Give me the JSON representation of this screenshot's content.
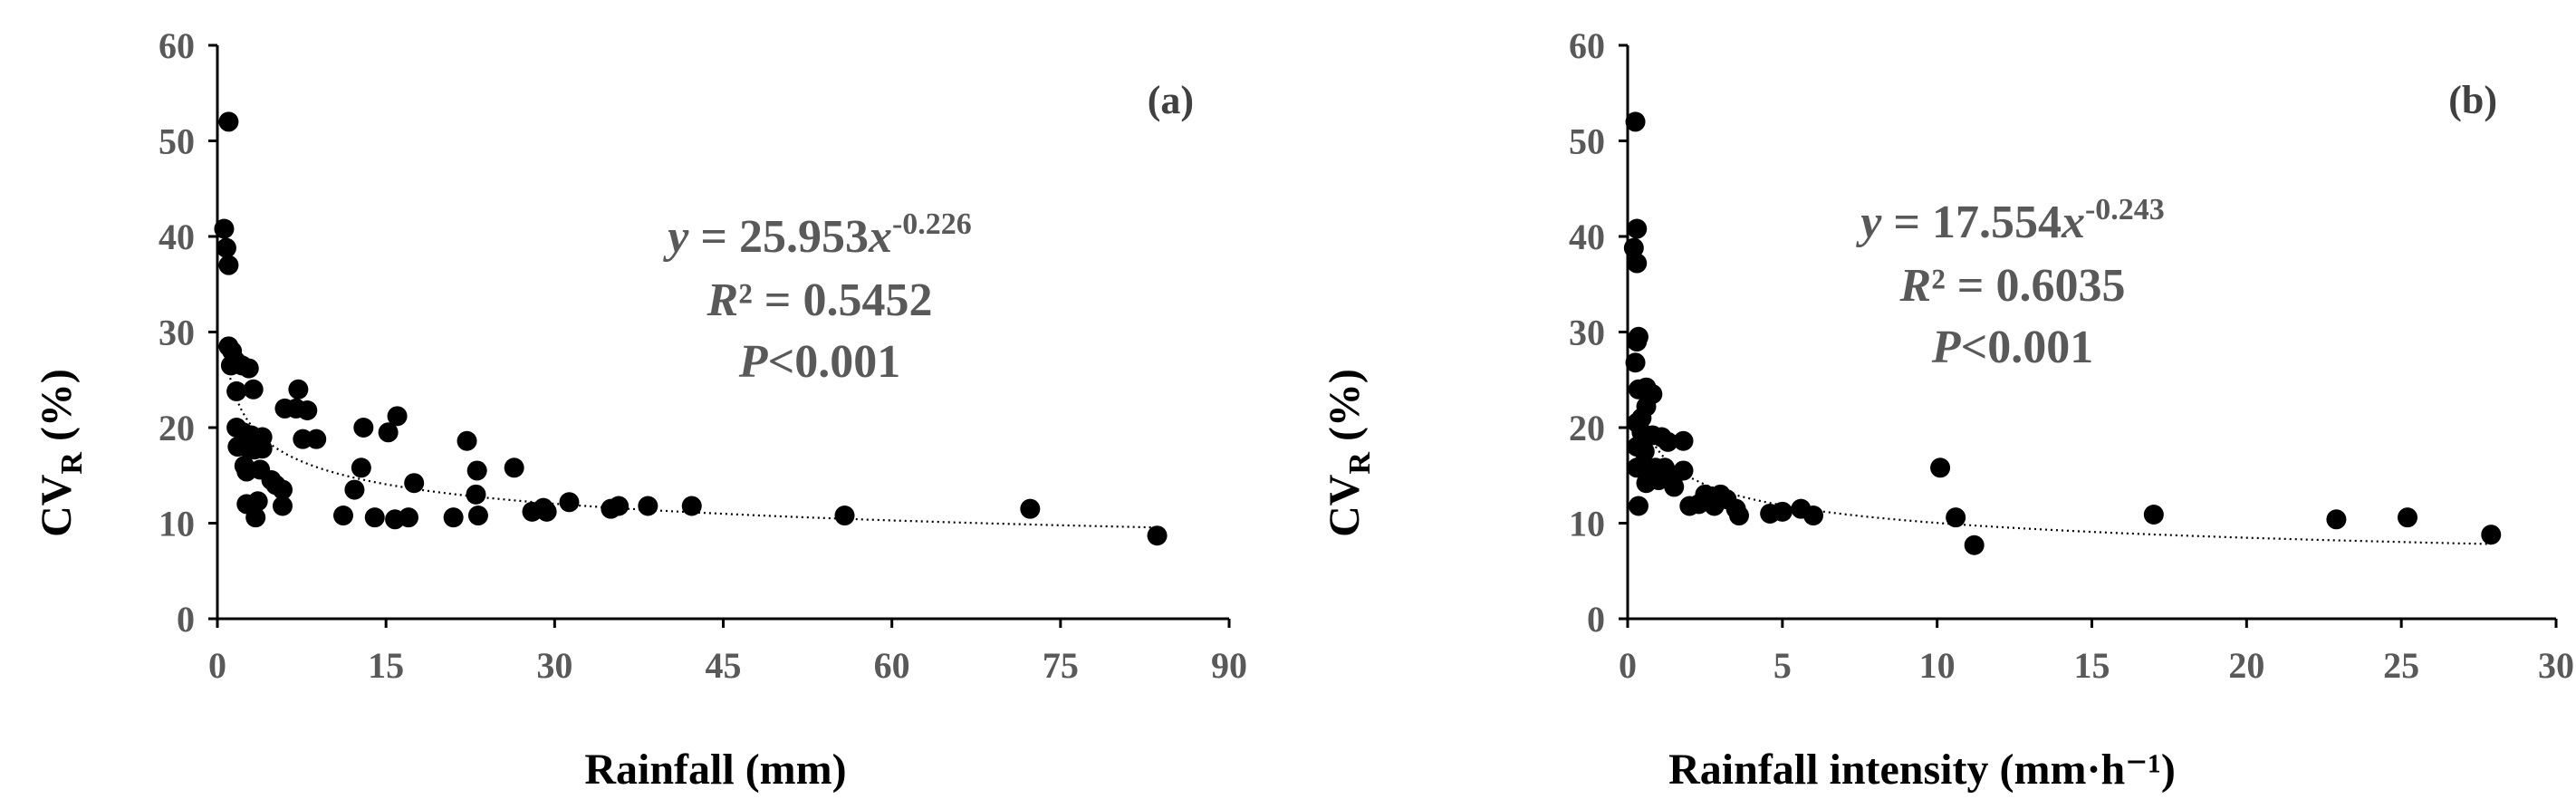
{
  "chart_data": [
    {
      "type": "scatter",
      "panel_label": "(a)",
      "xlabel": "Rainfall (mm)",
      "ylabel": {
        "main": "CV",
        "sub": "R",
        "rest": " (%)"
      },
      "xlim": [
        0,
        90
      ],
      "ylim": [
        0,
        60
      ],
      "xticks": [
        "0",
        "15",
        "30",
        "45",
        "60",
        "75",
        "90"
      ],
      "yticks": [
        "0",
        "10",
        "20",
        "30",
        "40",
        "50",
        "60"
      ],
      "equation": {
        "y": "y",
        "eq_mid": " = 25.953",
        "x": "x",
        "exp": "-0.226"
      },
      "r2": {
        "r": "R",
        "rest": "² = 0.5452"
      },
      "p": {
        "p": "P",
        "rest": "<0.001"
      },
      "trendline": {
        "type": "power",
        "a": 25.953,
        "b": -0.226,
        "style": "dotted"
      },
      "points": [
        [
          1.0,
          52.0
        ],
        [
          0.6,
          40.8
        ],
        [
          0.8,
          38.8
        ],
        [
          1.0,
          37.0
        ],
        [
          1.0,
          28.5
        ],
        [
          1.3,
          28.0
        ],
        [
          1.6,
          27.0
        ],
        [
          1.2,
          26.5
        ],
        [
          2.0,
          26.6
        ],
        [
          2.2,
          26.5
        ],
        [
          2.8,
          26.2
        ],
        [
          3.2,
          24.0
        ],
        [
          1.7,
          23.8
        ],
        [
          1.7,
          20.0
        ],
        [
          2.3,
          19.5
        ],
        [
          3.0,
          19.2
        ],
        [
          4.0,
          19.0
        ],
        [
          1.8,
          18.0
        ],
        [
          2.5,
          18.0
        ],
        [
          3.3,
          17.7
        ],
        [
          4.0,
          17.8
        ],
        [
          2.4,
          16.0
        ],
        [
          2.6,
          15.4
        ],
        [
          3.8,
          15.6
        ],
        [
          4.8,
          14.5
        ],
        [
          5.2,
          14.0
        ],
        [
          5.8,
          13.5
        ],
        [
          2.6,
          12.0
        ],
        [
          3.6,
          12.3
        ],
        [
          5.8,
          11.8
        ],
        [
          3.4,
          10.6
        ],
        [
          6.0,
          22.0
        ],
        [
          7.0,
          22.0
        ],
        [
          8.0,
          21.8
        ],
        [
          7.2,
          24.0
        ],
        [
          7.6,
          18.8
        ],
        [
          8.8,
          18.8
        ],
        [
          16.0,
          21.2
        ],
        [
          13.0,
          20.0
        ],
        [
          15.2,
          19.5
        ],
        [
          12.2,
          13.5
        ],
        [
          12.8,
          15.8
        ],
        [
          17.5,
          14.2
        ],
        [
          11.2,
          10.8
        ],
        [
          14.0,
          10.6
        ],
        [
          15.8,
          10.4
        ],
        [
          17.0,
          10.6
        ],
        [
          21.0,
          10.6
        ],
        [
          22.2,
          18.6
        ],
        [
          23.1,
          15.5
        ],
        [
          23.0,
          13.0
        ],
        [
          23.2,
          10.8
        ],
        [
          26.4,
          15.8
        ],
        [
          28.0,
          11.2
        ],
        [
          29.0,
          11.6
        ],
        [
          29.3,
          11.2
        ],
        [
          31.3,
          12.2
        ],
        [
          35.0,
          11.5
        ],
        [
          35.7,
          11.8
        ],
        [
          38.3,
          11.8
        ],
        [
          42.2,
          11.8
        ],
        [
          55.8,
          10.8
        ],
        [
          72.3,
          11.5
        ],
        [
          83.6,
          8.7
        ]
      ]
    },
    {
      "type": "scatter",
      "panel_label": "(b)",
      "xlabel": "Rainfall intensity  (mm·h⁻¹)",
      "ylabel": {
        "main": "CV",
        "sub": "R",
        "rest": " (%)"
      },
      "xlim": [
        0,
        30
      ],
      "ylim": [
        0,
        60
      ],
      "xticks": [
        "0",
        "5",
        "10",
        "15",
        "20",
        "25",
        "30"
      ],
      "yticks": [
        "0",
        "10",
        "20",
        "30",
        "40",
        "50",
        "60"
      ],
      "equation": {
        "y": "y",
        "eq_mid": " = 17.554",
        "x": "x",
        "exp": "-0.243"
      },
      "r2": {
        "r": "R",
        "rest": "² = 0.6035"
      },
      "p": {
        "p": "P",
        "rest": "<0.001"
      },
      "trendline": {
        "type": "power",
        "a": 17.554,
        "b": -0.243,
        "style": "dotted"
      },
      "points": [
        [
          0.25,
          52.0
        ],
        [
          0.3,
          40.8
        ],
        [
          0.2,
          38.8
        ],
        [
          0.3,
          37.2
        ],
        [
          0.35,
          29.5
        ],
        [
          0.3,
          29.0
        ],
        [
          0.25,
          26.8
        ],
        [
          0.35,
          24.0
        ],
        [
          0.6,
          24.2
        ],
        [
          0.8,
          23.5
        ],
        [
          0.45,
          21.0
        ],
        [
          0.6,
          22.2
        ],
        [
          0.3,
          20.5
        ],
        [
          0.45,
          19.5
        ],
        [
          0.3,
          18.0
        ],
        [
          0.55,
          17.5
        ],
        [
          0.8,
          19.2
        ],
        [
          1.1,
          19.0
        ],
        [
          1.3,
          18.5
        ],
        [
          1.8,
          18.6
        ],
        [
          0.3,
          15.8
        ],
        [
          0.5,
          16.2
        ],
        [
          0.7,
          15.5
        ],
        [
          0.9,
          15.8
        ],
        [
          1.2,
          15.8
        ],
        [
          1.5,
          15.0
        ],
        [
          1.8,
          15.5
        ],
        [
          0.6,
          14.2
        ],
        [
          1.0,
          14.5
        ],
        [
          1.5,
          13.8
        ],
        [
          0.35,
          11.8
        ],
        [
          2.0,
          11.8
        ],
        [
          2.3,
          12.0
        ],
        [
          2.5,
          13.0
        ],
        [
          2.7,
          12.8
        ],
        [
          3.0,
          13.0
        ],
        [
          2.8,
          11.8
        ],
        [
          3.2,
          12.5
        ],
        [
          3.5,
          11.5
        ],
        [
          3.6,
          10.8
        ],
        [
          4.6,
          11.0
        ],
        [
          5.0,
          11.2
        ],
        [
          5.6,
          11.5
        ],
        [
          6.0,
          10.8
        ],
        [
          10.1,
          15.8
        ],
        [
          10.6,
          10.6
        ],
        [
          11.2,
          7.7
        ],
        [
          17.0,
          10.9
        ],
        [
          22.9,
          10.4
        ],
        [
          25.2,
          10.6
        ],
        [
          27.9,
          8.8
        ]
      ]
    }
  ]
}
